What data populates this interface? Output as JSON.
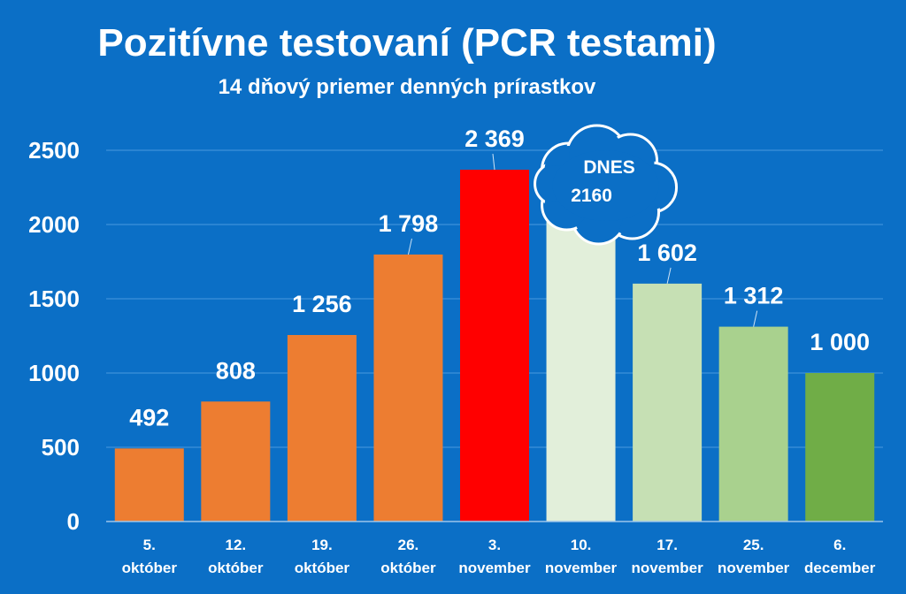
{
  "chart_data": {
    "type": "bar",
    "title": "Pozitívne testovaní (PCR testami)",
    "subtitle": "14 dňový priemer denných prírastkov",
    "categories": [
      [
        "5.",
        "október"
      ],
      [
        "12.",
        "október"
      ],
      [
        "19.",
        "október"
      ],
      [
        "26.",
        "október"
      ],
      [
        "3.",
        "november"
      ],
      [
        "10.",
        "november"
      ],
      [
        "17.",
        "november"
      ],
      [
        "25.",
        "november"
      ],
      [
        "6.",
        "december"
      ]
    ],
    "values": [
      492,
      808,
      1256,
      1798,
      2369,
      2160,
      1602,
      1312,
      1000
    ],
    "data_labels": [
      "492",
      "808",
      "1 256",
      "1 798",
      "2 369",
      "",
      "1 602",
      "1 312",
      "1 000"
    ],
    "bar_colors": [
      "#ed7d31",
      "#ed7d31",
      "#ed7d31",
      "#ed7d31",
      "#ff0000",
      "#e2efda",
      "#c6e0b4",
      "#a9d18e",
      "#70ad47"
    ],
    "ylim": [
      0,
      2500
    ],
    "yticks": [
      0,
      500,
      1000,
      1500,
      2000,
      2500
    ],
    "grid": true,
    "xlabel": "",
    "ylabel": "",
    "callout": {
      "category_index": 5,
      "label": "DNES",
      "value_text": "2160"
    }
  }
}
